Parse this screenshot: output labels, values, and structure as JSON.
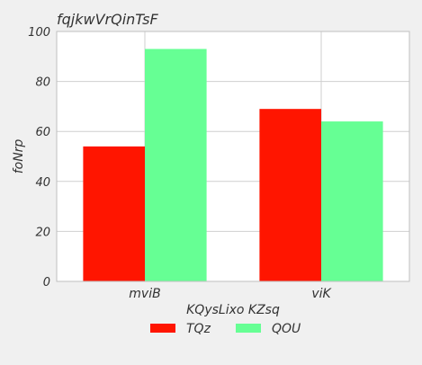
{
  "chart_data": {
    "type": "bar",
    "title": "fqjkwVrQinTsF",
    "xlabel": "KQysLixo KZsq",
    "ylabel": "foNrp",
    "categories": [
      "mviB",
      "viK"
    ],
    "series": [
      {
        "name": "TQz",
        "values": [
          54,
          69
        ],
        "color": "#ff1500"
      },
      {
        "name": "QOU",
        "values": [
          93,
          64
        ],
        "color": "#66ff94"
      }
    ],
    "ylim": [
      0,
      100
    ],
    "yticks": [
      0,
      20,
      40,
      60,
      80,
      100
    ],
    "grid": true,
    "legend_position": "bottom-center"
  }
}
